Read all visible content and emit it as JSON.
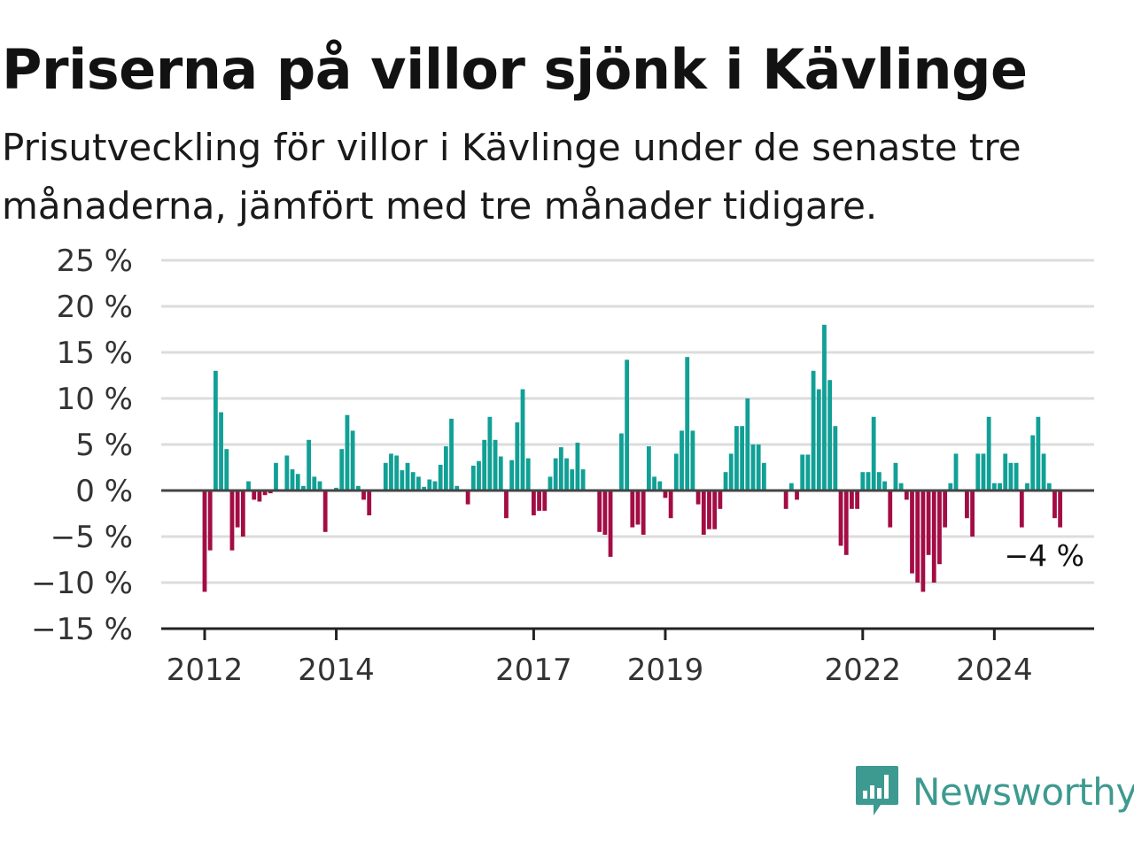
{
  "title": "Priserna på villor sjönk i Kävlinge",
  "subtitle": "Prisutveckling för villor i Kävlinge under de senaste tre månaderna, jämfört med tre månader tidigare.",
  "brand": {
    "name": "Newsworthy",
    "icon": "newsworthy-logo-icon",
    "color": "#3d9a90"
  },
  "colors": {
    "positive": "#11a096",
    "negative": "#a30d44",
    "grid": "#dcdcdc",
    "baseline": "#444444"
  },
  "chart_data": {
    "type": "bar",
    "title": "Priserna på villor sjönk i Kävlinge",
    "xlabel": "",
    "ylabel": "",
    "ylim": [
      -15,
      25
    ],
    "yticks": [
      25,
      20,
      15,
      10,
      5,
      0,
      -5,
      -10,
      -15
    ],
    "ytick_labels": [
      "25 %",
      "20 %",
      "15 %",
      "10 %",
      "5 %",
      "0 %",
      "−5 %",
      "−10 %",
      "−15 %"
    ],
    "xticks": [
      "2012",
      "2014",
      "2017",
      "2019",
      "2022",
      "2024"
    ],
    "start_month": "2012-01",
    "frequency": "monthly",
    "values": [
      -11,
      -6.5,
      13,
      8.5,
      4.5,
      -6.5,
      -4,
      -5,
      1,
      -1,
      -1.2,
      -0.5,
      -0.3,
      3,
      0,
      3.8,
      2.3,
      1.8,
      0.5,
      5.5,
      1.5,
      1,
      -4.5,
      0,
      0.3,
      4.5,
      8.2,
      6.5,
      0.5,
      -1,
      -2.7,
      0,
      0,
      3,
      4,
      3.8,
      2.2,
      3,
      2,
      1.5,
      0.4,
      1.2,
      1,
      2.8,
      4.8,
      7.8,
      0.5,
      0,
      -1.5,
      2.7,
      3.2,
      5.5,
      8,
      5.5,
      3.7,
      -3,
      3.3,
      7.4,
      11,
      3.5,
      -2.7,
      -2.2,
      -2.2,
      1.5,
      3.5,
      4.7,
      3.5,
      2.3,
      5.2,
      2.3,
      0,
      0,
      -4.5,
      -4.8,
      -7.2,
      0,
      6.2,
      14.2,
      -4,
      -3.7,
      -4.8,
      4.8,
      1.5,
      1,
      -0.8,
      -3,
      4,
      6.5,
      14.5,
      6.5,
      -1.5,
      -4.8,
      -4.2,
      -4.2,
      -2,
      2,
      4,
      7,
      7,
      10,
      5,
      5,
      3,
      0,
      0,
      0,
      -2,
      0.8,
      -1,
      3.9,
      3.9,
      13,
      11,
      18,
      12,
      7,
      -6,
      -7,
      -2,
      -2,
      2,
      2,
      8,
      2,
      1,
      -4,
      3,
      0.8,
      -1,
      -9,
      -10,
      -11,
      -7,
      -10,
      -8,
      -4,
      0.8,
      4,
      0,
      -3,
      -5,
      4,
      4,
      8,
      0.8,
      0.8,
      4,
      3,
      3,
      -4,
      0.8,
      6,
      8,
      4,
      0.8,
      -3,
      -4
    ],
    "end_label": "−4 %",
    "grid": true
  }
}
